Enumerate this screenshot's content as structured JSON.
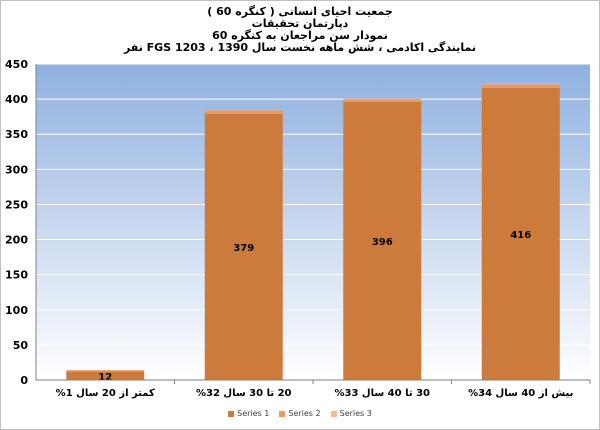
{
  "chart_data": {
    "type": "bar",
    "stacked": true,
    "title_lines": [
      "جمعیت احیای انسانی ( کنگره 60 )",
      "دپارتمان تحقیقات",
      "نمودار سن مراجعان به کنگره 60",
      "نمایندگی اکادمی ، شش ماهه نخست سال 1390 ، FGS 1203 نفر"
    ],
    "categories": [
      "کمتر از 20 سال 1%",
      "20 تا 30 سال 32%",
      "30 تا 40 سال 33%",
      "بیش از 40 سال 34%"
    ],
    "series": [
      {
        "name": "Series 1",
        "values": [
          12,
          379,
          396,
          416
        ],
        "color": "#cd7b3c",
        "show_labels": true
      },
      {
        "name": "Series 2",
        "values": [
          2,
          5,
          4,
          5
        ],
        "color": "#ea9a5e",
        "show_labels": false
      },
      {
        "name": "Series 3",
        "values": [
          0,
          1,
          1,
          1
        ],
        "color": "#f4b896",
        "show_labels": false
      }
    ],
    "ylim": [
      0,
      450
    ],
    "yticks": [
      "0",
      "50",
      "100",
      "150",
      "200",
      "250",
      "300",
      "350",
      "400",
      "450"
    ],
    "grid": true,
    "legend_position": "bottom-center",
    "plot_background": {
      "top": "#8fb0e0",
      "bottom": "#ffffff"
    }
  }
}
